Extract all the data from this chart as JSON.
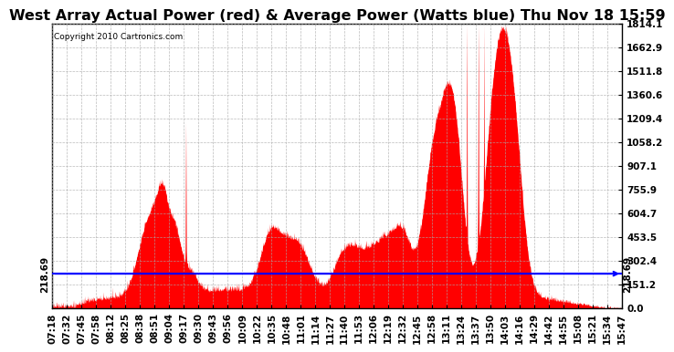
{
  "title": "West Array Actual Power (red) & Average Power (Watts blue) Thu Nov 18 15:59",
  "copyright": "Copyright 2010 Cartronics.com",
  "avg_power": 218.69,
  "ymax": 1814.1,
  "ymin": 0.0,
  "yticks": [
    0.0,
    151.2,
    302.4,
    453.5,
    604.7,
    755.9,
    907.1,
    1058.2,
    1209.4,
    1360.6,
    1511.8,
    1662.9,
    1814.1
  ],
  "ytick_labels": [
    "0.0",
    "151.2",
    "302.4",
    "453.5",
    "604.7",
    "755.9",
    "907.1",
    "1058.2",
    "1209.4",
    "1360.6",
    "1511.8",
    "1662.9",
    "1814.1"
  ],
  "xtick_labels": [
    "07:18",
    "07:32",
    "07:45",
    "07:58",
    "08:12",
    "08:25",
    "08:38",
    "08:51",
    "09:04",
    "09:17",
    "09:30",
    "09:43",
    "09:56",
    "10:09",
    "10:22",
    "10:35",
    "10:48",
    "11:01",
    "11:14",
    "11:27",
    "11:40",
    "11:53",
    "12:06",
    "12:19",
    "12:32",
    "12:45",
    "12:58",
    "13:11",
    "13:24",
    "13:37",
    "13:50",
    "14:03",
    "14:16",
    "14:29",
    "14:42",
    "14:55",
    "15:08",
    "15:21",
    "15:34",
    "15:47"
  ],
  "title_fontsize": 11.5,
  "label_fontsize": 7.5,
  "copyright_fontsize": 6.5,
  "avg_label": "218.69",
  "background_color": "#ffffff",
  "fill_color": "#ff0000",
  "line_color": "#0000ff",
  "grid_color": "#aaaaaa"
}
